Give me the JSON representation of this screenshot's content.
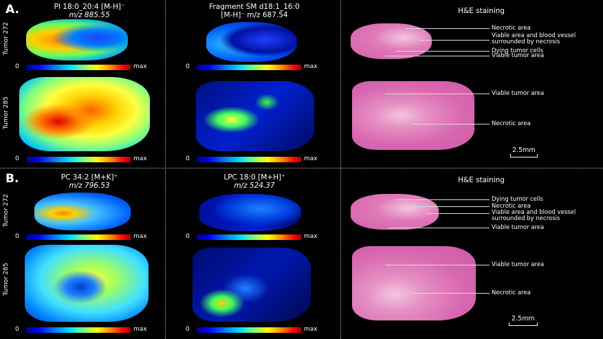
{
  "panel_a": {
    "letter": "A.",
    "col1_title_1": "PI 18:0_20:4 [M-H]⁻",
    "col1_title_2": "m/z 885.55",
    "col2_title_1": "Fragment SM d18:1_16:0",
    "col2_title_2": "[M-H]⁻ m/z 687.54",
    "col3_title": "H&E staining",
    "row1_label": "Tumor 272",
    "row2_label": "Tumor 285",
    "annotations_272": [
      "Necrotic area",
      "Viable area and blood vessel surrounded by necrosis",
      "Dying tumor cells",
      "Viable tumor area"
    ],
    "annotations_285": [
      "Viable tumor area",
      "Necrotic area"
    ],
    "scale": "2.5mm"
  },
  "panel_b": {
    "letter": "B.",
    "col1_title_1": "PC 34:2 [M+K]⁺",
    "col1_title_2": "m/z 796.53",
    "col2_title_1": "LPC 18:0 [M+H]⁺",
    "col2_title_2": "m/z 524.37",
    "col3_title": "H&E staining",
    "row1_label": "Tumor 272",
    "row2_label": "Tumor 285",
    "annotations_272": [
      "Dying tumor cells",
      "Necrotic area",
      "Viable area and blood vessel surrounded by necrosis",
      "Viable tumor area"
    ],
    "annotations_285": [
      "Viable tumor area",
      "Necrotic area"
    ],
    "scale": "2.5mm"
  },
  "colorbar": {
    "min": "0",
    "max": "max"
  },
  "colors": {
    "he_pink": "#e07ab8",
    "he_light": "#f4c6e0"
  }
}
